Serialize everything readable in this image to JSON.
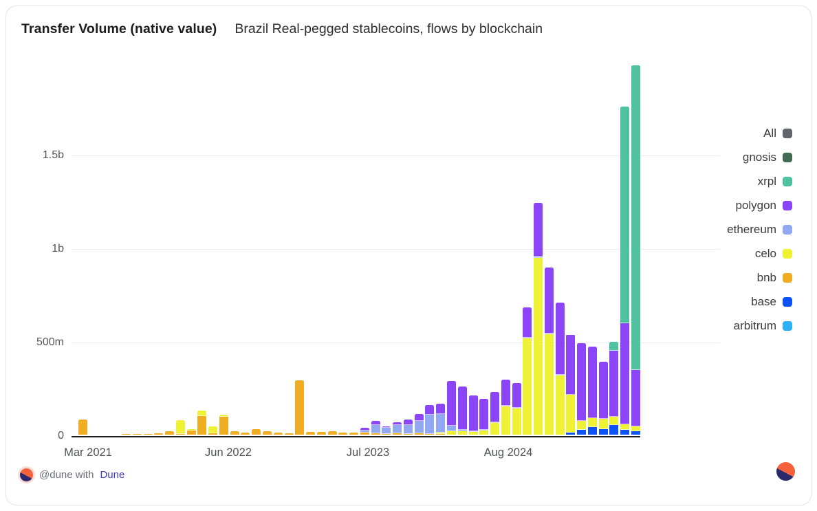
{
  "chart_data": {
    "type": "bar",
    "stacked": true,
    "title": "Transfer Volume (native value)",
    "subtitle": "Brazil Real-pegged stablecoins, flows by blockchain",
    "value_unit": "millions",
    "ylim": [
      0,
      2000
    ],
    "grid": "horizontal",
    "legend_position": "right",
    "y_ticks": [
      {
        "value": 0,
        "label": "0"
      },
      {
        "value": 500,
        "label": "500m"
      },
      {
        "value": 1000,
        "label": "1b"
      },
      {
        "value": 1500,
        "label": "1.5b"
      }
    ],
    "x_ticks": [
      "Mar 2021",
      "Jun 2022",
      "Jul 2023",
      "Aug 2024"
    ],
    "categories": [
      "Mar 2021",
      "Apr 2021",
      "May 2021",
      "Jun 2021",
      "Jul 2021",
      "Aug 2021",
      "Sep 2021",
      "Oct 2021",
      "Nov 2021",
      "Dec 2021",
      "Jan 2022",
      "Feb 2022",
      "Mar 2022",
      "Apr 2022",
      "May 2022",
      "Jun 2022",
      "Jul 2022",
      "Aug 2022",
      "Sep 2022",
      "Oct 2022",
      "Nov 2022",
      "Dec 2022",
      "Jan 2023",
      "Feb 2023",
      "Mar 2023",
      "Apr 2023",
      "May 2023",
      "Jun 2023",
      "Jul 2023",
      "Aug 2023",
      "Sep 2023",
      "Oct 2023",
      "Nov 2023",
      "Dec 2023",
      "Jan 2024",
      "Feb 2024",
      "Mar 2024",
      "Apr 2024",
      "May 2024",
      "Jun 2024",
      "Jul 2024",
      "Aug 2024",
      "Sep 2024",
      "Oct 2024",
      "Nov 2024",
      "Dec 2024",
      "Jan 2025",
      "Feb 2025",
      "Mar 2025",
      "Apr 2025",
      "May 2025",
      "Jun 2025"
    ],
    "legend": [
      {
        "name": "All",
        "color": "#63656d"
      },
      {
        "name": "gnosis",
        "color": "#436b52"
      },
      {
        "name": "xrpl",
        "color": "#4fc2a0"
      },
      {
        "name": "polygon",
        "color": "#8b45f7"
      },
      {
        "name": "ethereum",
        "color": "#90a9f2"
      },
      {
        "name": "celo",
        "color": "#eff234"
      },
      {
        "name": "bnb",
        "color": "#f1ad22"
      },
      {
        "name": "base",
        "color": "#0d53f7"
      },
      {
        "name": "arbitrum",
        "color": "#2cb0f6"
      }
    ],
    "stack_order": [
      "arbitrum",
      "base",
      "bnb",
      "celo",
      "ethereum",
      "polygon",
      "xrpl",
      "gnosis"
    ],
    "series": [
      {
        "name": "bnb",
        "values": [
          80,
          1,
          1,
          1,
          2,
          2,
          3,
          7,
          18,
          5,
          22,
          100,
          6,
          95,
          18,
          11,
          30,
          20,
          10,
          8,
          290,
          15,
          15,
          20,
          12,
          10,
          10,
          8,
          5,
          8,
          5,
          8,
          5,
          5,
          0,
          0,
          0,
          0,
          0,
          0,
          0,
          0,
          0,
          0,
          0,
          0,
          0,
          0,
          0,
          0,
          0,
          0
        ]
      },
      {
        "name": "celo",
        "values": [
          0,
          0,
          0,
          0,
          0,
          0,
          0,
          0,
          0,
          72,
          8,
          30,
          40,
          10,
          0,
          0,
          0,
          0,
          0,
          0,
          0,
          0,
          0,
          0,
          0,
          0,
          0,
          0,
          0,
          0,
          0,
          0,
          0,
          5,
          18,
          18,
          15,
          22,
          63,
          150,
          140,
          515,
          945,
          535,
          315,
          205,
          50,
          50,
          55,
          45,
          30,
          25
        ]
      },
      {
        "name": "ethereum",
        "values": [
          0,
          0,
          0,
          0,
          0,
          0,
          0,
          0,
          0,
          0,
          0,
          0,
          0,
          0,
          0,
          0,
          0,
          0,
          0,
          0,
          0,
          0,
          0,
          0,
          0,
          0,
          12,
          44,
          30,
          45,
          45,
          66,
          103,
          100,
          30,
          8,
          5,
          5,
          5,
          4,
          4,
          5,
          8,
          5,
          5,
          0,
          0,
          0,
          0,
          0,
          0,
          0
        ]
      },
      {
        "name": "polygon",
        "values": [
          0,
          0,
          0,
          0,
          0,
          0,
          0,
          0,
          0,
          0,
          0,
          0,
          0,
          0,
          0,
          0,
          0,
          0,
          0,
          0,
          0,
          0,
          0,
          0,
          0,
          0,
          15,
          22,
          10,
          15,
          30,
          37,
          50,
          55,
          240,
          230,
          190,
          165,
          160,
          140,
          130,
          160,
          285,
          355,
          385,
          320,
          415,
          380,
          305,
          355,
          540,
          300
        ]
      },
      {
        "name": "xrpl",
        "values": [
          0,
          0,
          0,
          0,
          0,
          0,
          0,
          0,
          0,
          0,
          0,
          0,
          0,
          0,
          0,
          0,
          0,
          0,
          0,
          0,
          0,
          0,
          0,
          0,
          0,
          0,
          0,
          0,
          0,
          0,
          0,
          0,
          0,
          0,
          0,
          0,
          0,
          0,
          0,
          0,
          0,
          0,
          0,
          0,
          0,
          0,
          0,
          0,
          0,
          45,
          1160,
          1630
        ]
      },
      {
        "name": "base",
        "values": [
          0,
          0,
          0,
          0,
          0,
          0,
          0,
          0,
          0,
          0,
          0,
          0,
          0,
          0,
          0,
          0,
          0,
          0,
          0,
          0,
          0,
          0,
          0,
          0,
          0,
          0,
          0,
          0,
          0,
          0,
          0,
          0,
          0,
          0,
          0,
          0,
          0,
          0,
          0,
          0,
          0,
          0,
          0,
          0,
          0,
          10,
          25,
          40,
          30,
          50,
          25,
          20
        ]
      },
      {
        "name": "gnosis",
        "values": [
          0,
          0,
          0,
          0,
          0,
          0,
          0,
          0,
          0,
          0,
          0,
          0,
          0,
          0,
          0,
          0,
          0,
          0,
          0,
          0,
          0,
          0,
          0,
          0,
          0,
          0,
          0,
          0,
          0,
          0,
          0,
          0,
          0,
          0,
          0,
          0,
          0,
          0,
          0,
          0,
          0,
          0,
          0,
          0,
          0,
          0,
          0,
          0,
          0,
          0,
          0,
          0
        ]
      },
      {
        "name": "arbitrum",
        "values": [
          0,
          0,
          0,
          0,
          0,
          0,
          0,
          0,
          0,
          0,
          0,
          0,
          0,
          0,
          0,
          0,
          0,
          0,
          0,
          0,
          0,
          0,
          0,
          0,
          0,
          0,
          0,
          0,
          0,
          0,
          0,
          0,
          0,
          0,
          0,
          0,
          0,
          0,
          0,
          0,
          0,
          0,
          0,
          0,
          0,
          0,
          0,
          0,
          0,
          0,
          0,
          0
        ]
      }
    ]
  },
  "footer": {
    "attribution_prefix": "@dune with",
    "attribution_brand": "Dune"
  },
  "logo_colors": {
    "orange": "#f4613d",
    "navy": "#2a296d"
  }
}
